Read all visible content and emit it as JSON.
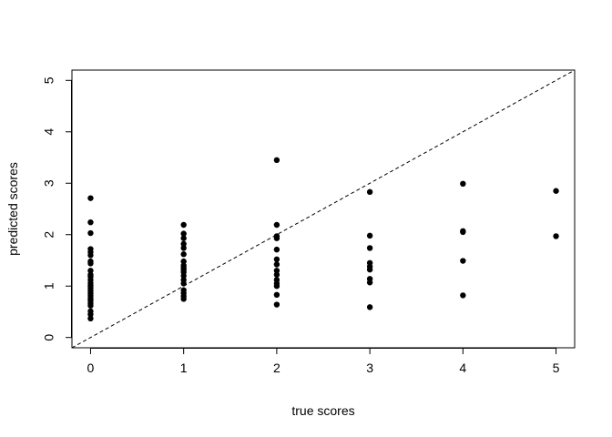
{
  "chart_data": {
    "type": "scatter",
    "title": "",
    "xlabel": "true scores",
    "ylabel": "predicted scores",
    "xlim": [
      -0.2,
      5.2
    ],
    "ylim": [
      -0.2,
      5.2
    ],
    "x_ticks": [
      0,
      1,
      2,
      3,
      4,
      5
    ],
    "y_ticks": [
      0,
      1,
      2,
      3,
      4,
      5
    ],
    "grid": false,
    "point_color": "#000000",
    "reference_line": {
      "type": "identity",
      "style": "dashed",
      "slope": 1,
      "intercept": 0
    },
    "series": [
      {
        "points": [
          [
            0,
            2.71
          ],
          [
            0,
            2.24
          ],
          [
            0,
            2.03
          ],
          [
            0,
            1.72
          ],
          [
            0,
            1.66
          ],
          [
            0,
            1.6
          ],
          [
            0,
            1.48
          ],
          [
            0,
            1.44
          ],
          [
            0,
            1.3
          ],
          [
            0,
            1.22
          ],
          [
            0,
            1.18
          ],
          [
            0,
            1.12
          ],
          [
            0,
            1.06
          ],
          [
            0,
            1.01
          ],
          [
            0,
            0.96
          ],
          [
            0,
            0.91
          ],
          [
            0,
            0.86
          ],
          [
            0,
            0.81
          ],
          [
            0,
            0.76
          ],
          [
            0,
            0.72
          ],
          [
            0,
            0.67
          ],
          [
            0,
            0.62
          ],
          [
            0,
            0.51
          ],
          [
            0,
            0.45
          ],
          [
            0,
            0.37
          ],
          [
            1,
            2.19
          ],
          [
            1,
            2.02
          ],
          [
            1,
            1.93
          ],
          [
            1,
            1.82
          ],
          [
            1,
            1.74
          ],
          [
            1,
            1.62
          ],
          [
            1,
            1.48
          ],
          [
            1,
            1.4
          ],
          [
            1,
            1.36
          ],
          [
            1,
            1.32
          ],
          [
            1,
            1.27
          ],
          [
            1,
            1.2
          ],
          [
            1,
            1.12
          ],
          [
            1,
            1.05
          ],
          [
            1,
            0.92
          ],
          [
            1,
            0.86
          ],
          [
            1,
            0.8
          ],
          [
            1,
            0.75
          ],
          [
            2,
            3.45
          ],
          [
            2,
            2.19
          ],
          [
            2,
            1.97
          ],
          [
            2,
            1.93
          ],
          [
            2,
            1.71
          ],
          [
            2,
            1.52
          ],
          [
            2,
            1.42
          ],
          [
            2,
            1.3
          ],
          [
            2,
            1.22
          ],
          [
            2,
            1.12
          ],
          [
            2,
            1.05
          ],
          [
            2,
            1.0
          ],
          [
            2,
            0.83
          ],
          [
            2,
            0.64
          ],
          [
            3,
            2.83
          ],
          [
            3,
            1.98
          ],
          [
            3,
            1.74
          ],
          [
            3,
            1.45
          ],
          [
            3,
            1.38
          ],
          [
            3,
            1.32
          ],
          [
            3,
            1.14
          ],
          [
            3,
            1.07
          ],
          [
            3,
            0.59
          ],
          [
            4,
            2.99
          ],
          [
            4,
            2.07
          ],
          [
            4,
            2.05
          ],
          [
            4,
            1.49
          ],
          [
            4,
            0.82
          ],
          [
            5,
            2.85
          ],
          [
            5,
            1.97
          ]
        ]
      }
    ]
  }
}
